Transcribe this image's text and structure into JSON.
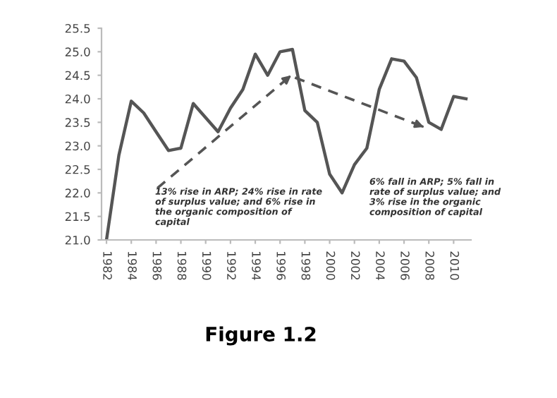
{
  "chart_data": {
    "type": "line",
    "x": [
      1982,
      1983,
      1984,
      1985,
      1986,
      1987,
      1988,
      1989,
      1990,
      1991,
      1992,
      1993,
      1994,
      1995,
      1996,
      1997,
      1998,
      1999,
      2000,
      2001,
      2002,
      2003,
      2004,
      2005,
      2006,
      2007,
      2008,
      2009,
      2010,
      2011
    ],
    "series": [
      {
        "color": "#555555",
        "values": [
          21.0,
          22.8,
          23.95,
          23.7,
          23.3,
          22.9,
          22.95,
          23.9,
          23.6,
          23.3,
          23.8,
          24.2,
          24.95,
          24.5,
          25.0,
          25.05,
          23.75,
          23.5,
          22.4,
          22.0,
          22.6,
          22.95,
          24.2,
          24.85,
          24.8,
          24.45,
          23.5,
          23.35,
          24.05,
          24.0
        ]
      },
      {
        "type": "line",
        "line_style": "dashed",
        "color": "#555555",
        "x": [
          1986.1,
          1996.9
        ],
        "values": [
          22.1,
          24.5
        ]
      },
      {
        "type": "line",
        "line_style": "dashed",
        "color": "#555555",
        "x": [
          1997.2,
          2007.6
        ],
        "values": [
          24.45,
          23.4
        ]
      }
    ],
    "xlim": [
      1981.6,
      2011.4
    ],
    "xticks": [
      1982,
      1984,
      1986,
      1988,
      1990,
      1992,
      1994,
      1996,
      1998,
      2000,
      2002,
      2004,
      2006,
      2008,
      2010
    ],
    "ylim": [
      21.0,
      25.5
    ],
    "yticks": [
      {
        "value": 21.0,
        "label": "21.0"
      },
      {
        "value": 21.5,
        "label": "21.5"
      },
      {
        "value": 22.0,
        "label": "22.0"
      },
      {
        "value": 22.5,
        "label": "22.5"
      },
      {
        "value": 23.0,
        "label": "23.0"
      },
      {
        "value": 23.5,
        "label": "23.5"
      },
      {
        "value": 24.0,
        "label": "24.0"
      },
      {
        "value": 24.5,
        "label": "24.5"
      },
      {
        "value": 25.0,
        "label": "25.0"
      },
      {
        "value": 25.5,
        "label": "25.5"
      }
    ],
    "grid": false,
    "annotations": [
      "13% rise in ARP; 24% rise in rate\nof surplus value; and 6% rise in\nthe organic composition of\ncapital",
      "6% fall in ARP; 5% fall in\nrate of surplus value; and\n3% rise in the organic\ncomposition of capital",
      "Figure 1.2"
    ]
  }
}
